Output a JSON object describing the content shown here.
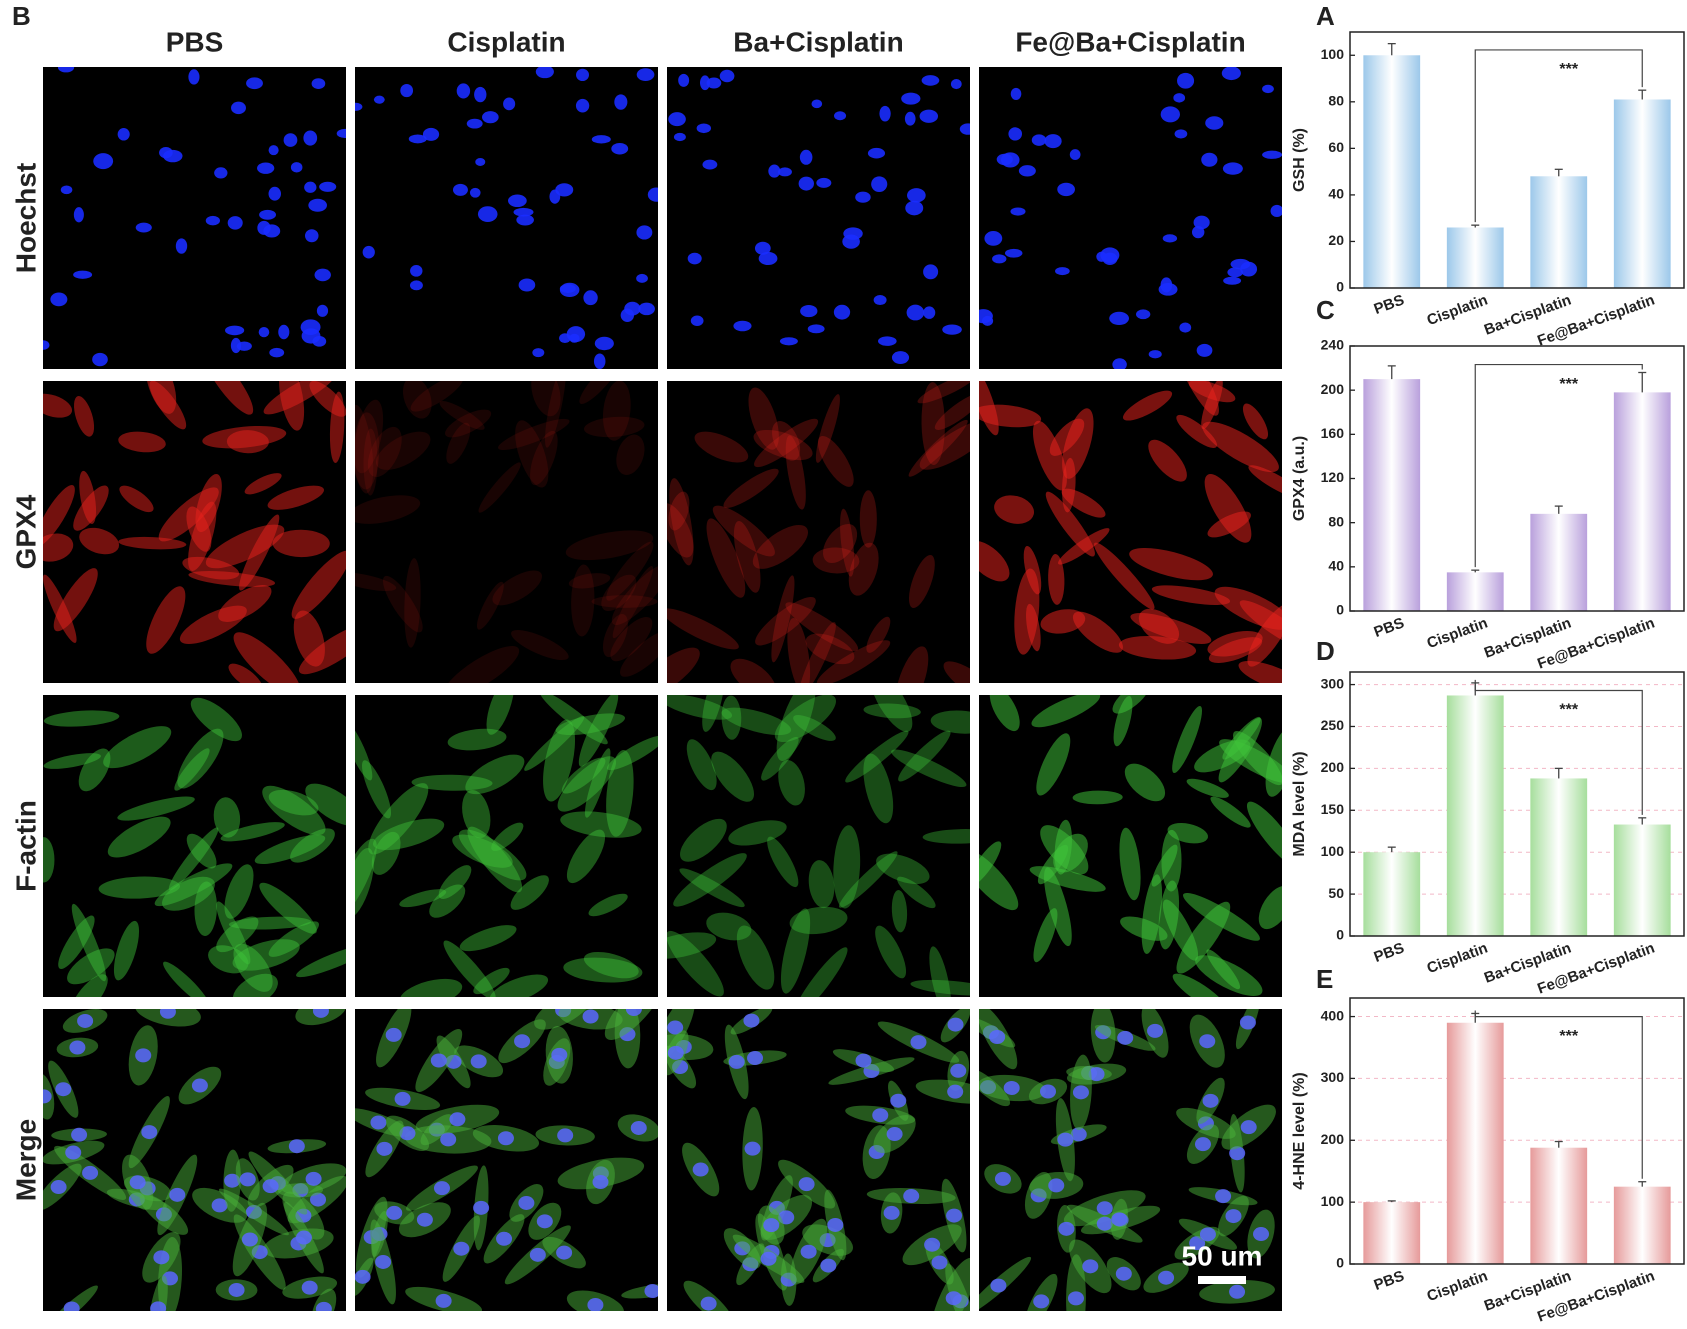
{
  "micrograph": {
    "label": "B",
    "columns": [
      "PBS",
      "Cisplatin",
      "Ba+Cisplatin",
      "Fe@Ba+Cisplatin"
    ],
    "rows": [
      "Hoechst",
      "GPX4",
      "F-actin",
      "Merge"
    ],
    "scale_bar": "50 um"
  },
  "chart_data": [
    {
      "type": "bar",
      "label": "A",
      "ylabel": "GSH (%)",
      "categories": [
        "PBS",
        "Cisplatin",
        "Ba+Cisplatin",
        "Fe@Ba+Cisplatin"
      ],
      "values": [
        100,
        26,
        48,
        81
      ],
      "errors": [
        5,
        1,
        3,
        4
      ],
      "color": "#9cc8ea",
      "ylim": [
        0,
        110
      ],
      "yticks": [
        0,
        20,
        40,
        60,
        80,
        100
      ],
      "grid": false,
      "annotation": "***"
    },
    {
      "type": "bar",
      "label": "C",
      "ylabel": "GPX4 (a.u.)",
      "categories": [
        "PBS",
        "Cisplatin",
        "Ba+Cisplatin",
        "Fe@Ba+Cisplatin"
      ],
      "values": [
        210,
        35,
        88,
        198
      ],
      "errors": [
        12,
        2,
        7,
        18
      ],
      "color": "#b9a0dc",
      "ylim": [
        0,
        240
      ],
      "yticks": [
        0,
        40,
        80,
        120,
        160,
        200,
        240
      ],
      "grid": false,
      "annotation": "***"
    },
    {
      "type": "bar",
      "label": "D",
      "ylabel": "MDA level (%)",
      "categories": [
        "PBS",
        "Cisplatin",
        "Ba+Cisplatin",
        "Fe@Ba+Cisplatin"
      ],
      "values": [
        100,
        287,
        188,
        133
      ],
      "errors": [
        6,
        15,
        12,
        8
      ],
      "color": "#a6de9c",
      "ylim": [
        0,
        315
      ],
      "yticks": [
        0,
        50,
        100,
        150,
        200,
        250,
        300
      ],
      "grid": true,
      "annotation": "***"
    },
    {
      "type": "bar",
      "label": "E",
      "ylabel": "4-HNE level (%)",
      "categories": [
        "PBS",
        "Cisplatin",
        "Ba+Cisplatin",
        "Fe@Ba+Cisplatin"
      ],
      "values": [
        100,
        390,
        188,
        125
      ],
      "errors": [
        2,
        15,
        10,
        8
      ],
      "color": "#e69a9a",
      "ylim": [
        0,
        430
      ],
      "yticks": [
        0,
        100,
        200,
        300,
        400
      ],
      "grid": true,
      "annotation": "***"
    }
  ]
}
